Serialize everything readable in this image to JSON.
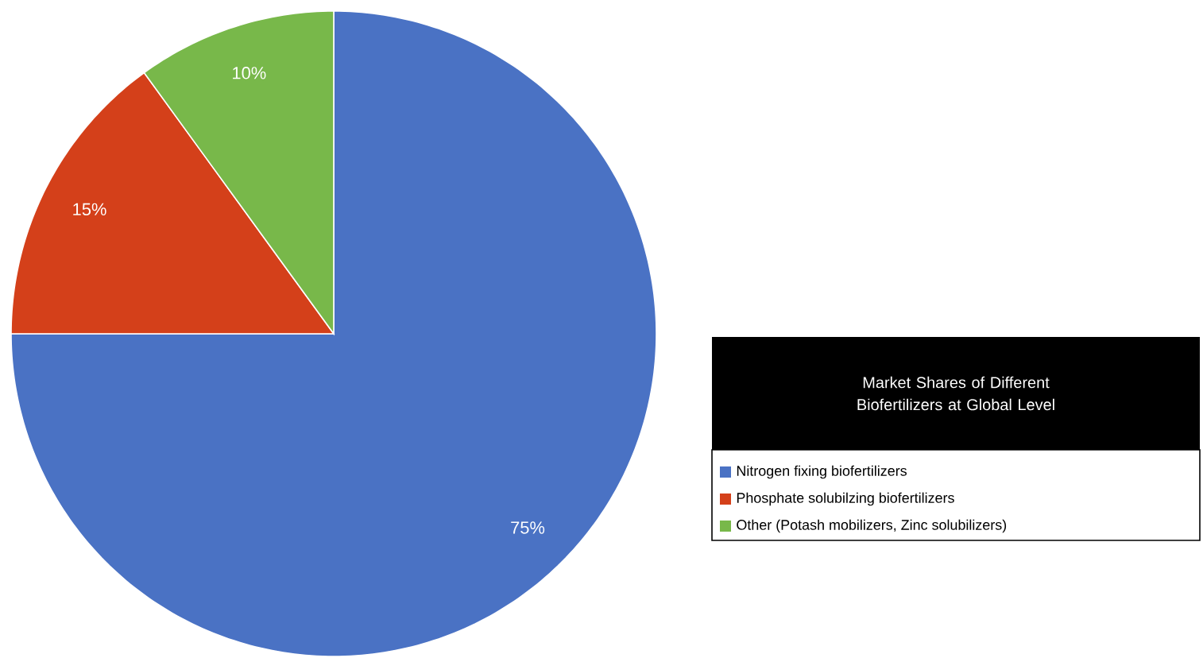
{
  "chart_data": {
    "type": "pie",
    "legend_title": "Market Shares of Different Biofertilizers at Global Level",
    "categories": [
      "Nitrogen fixing biofertilizers",
      "Phosphate solubilzing biofertilizers",
      "Other (Potash mobilizers, Zinc solubilizers)"
    ],
    "values": [
      75,
      15,
      10
    ],
    "colors": [
      "#4a72c4",
      "#d4401a",
      "#78b84a"
    ],
    "value_labels": [
      "75%",
      "15%",
      "10%"
    ],
    "legend": "right"
  }
}
